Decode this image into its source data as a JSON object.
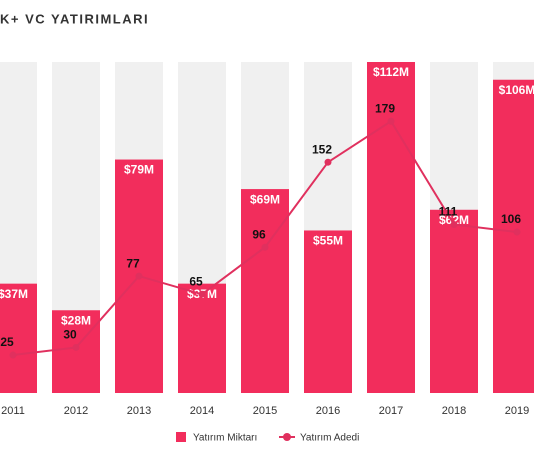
{
  "chart_data": {
    "type": "bar",
    "title": "K+ VC YATIRIMLARI",
    "categories": [
      "2011",
      "2012",
      "2013",
      "2014",
      "2015",
      "2016",
      "2017",
      "2018",
      "2019"
    ],
    "series": [
      {
        "name": "Yatırım Miktarı",
        "type": "bar",
        "color": "#f22d5c",
        "values": [
          37,
          28,
          79,
          37,
          69,
          55,
          112,
          62,
          106
        ],
        "value_labels": [
          "$37M",
          "$28M",
          "$79M",
          "$37M",
          "$69M",
          "$55M",
          "$112M",
          "$62M",
          "$106M"
        ]
      },
      {
        "name": "Yatırım Adedi",
        "type": "line",
        "axis": "y2",
        "color": "#e0305e",
        "values": [
          25,
          30,
          77,
          65,
          96,
          152,
          179,
          111,
          106
        ]
      }
    ],
    "ylim": [
      0,
      112
    ],
    "y2lim": [
      0,
      218
    ],
    "background_color": "#f0f0f0"
  }
}
